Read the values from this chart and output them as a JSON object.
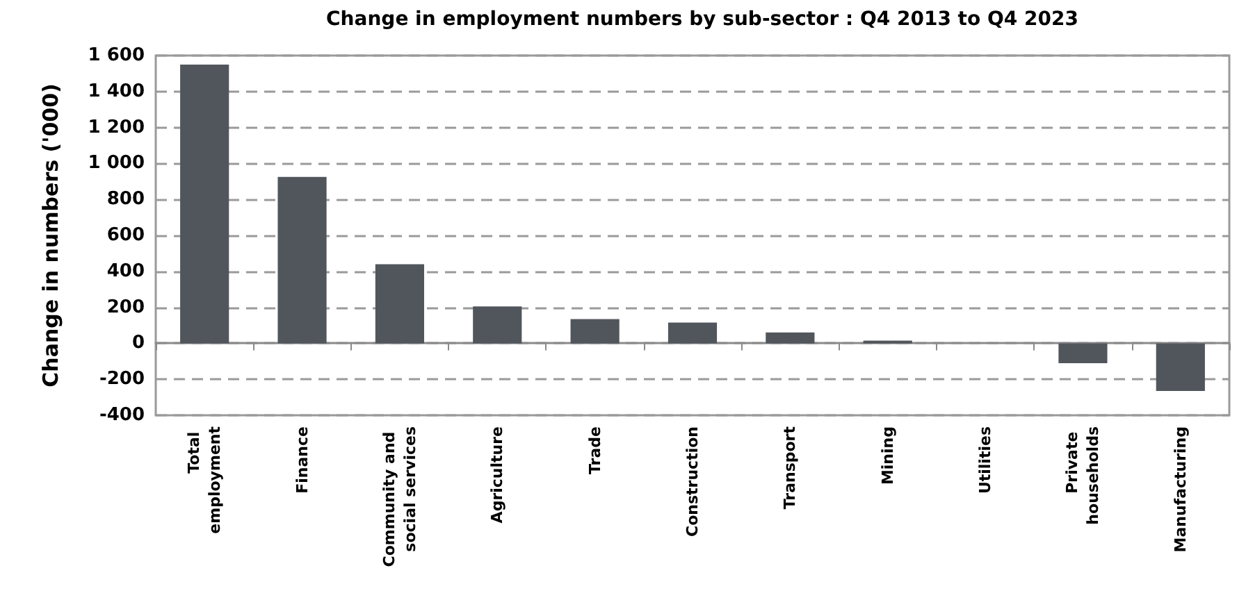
{
  "chart_data": {
    "type": "bar",
    "title": "Change in employment numbers by sub-sector : Q4 2013 to Q4 2023",
    "ylabel": "Change in numbers ('000)",
    "categories": [
      "Total employment",
      "Finance",
      "Community and social services",
      "Agriculture",
      "Trade",
      "Construction",
      "Transport",
      "Mining",
      "Utilities",
      "Private households",
      "Manufacturing"
    ],
    "values": [
      1550,
      925,
      440,
      205,
      135,
      115,
      60,
      15,
      0,
      -110,
      -265
    ],
    "color": "#51565c",
    "ylim": [
      -400,
      1600
    ],
    "yticks": [
      {
        "value": -400,
        "label": "-400"
      },
      {
        "value": -200,
        "label": "-200"
      },
      0,
      200,
      400,
      600,
      800,
      {
        "value": 1000,
        "label": "1 000"
      },
      {
        "value": 1200,
        "label": "1 200"
      },
      {
        "value": 1400,
        "label": "1 400"
      },
      {
        "value": 1600,
        "label": "1 600"
      }
    ],
    "grid": "y"
  }
}
